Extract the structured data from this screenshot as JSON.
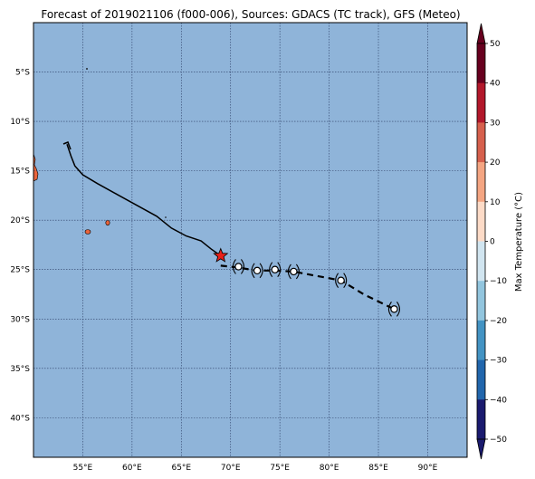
{
  "title": "Forecast of 2019021106 (f000-006), Sources: GDACS (TC track), GFS (Meteo)",
  "map": {
    "ocean_color": "#8fb4d9",
    "land_color": "#e8643c",
    "lon_range": [
      50,
      94
    ],
    "lat_range": [
      -44,
      0
    ],
    "lon_ticks": [
      {
        "value": 55,
        "label": "55°E"
      },
      {
        "value": 60,
        "label": "60°E"
      },
      {
        "value": 65,
        "label": "65°E"
      },
      {
        "value": 70,
        "label": "70°E"
      },
      {
        "value": 75,
        "label": "75°E"
      },
      {
        "value": 80,
        "label": "80°E"
      },
      {
        "value": 85,
        "label": "85°E"
      },
      {
        "value": 90,
        "label": "90°E"
      }
    ],
    "lat_ticks": [
      {
        "value": -5,
        "label": "5°S"
      },
      {
        "value": -10,
        "label": "10°S"
      },
      {
        "value": -15,
        "label": "15°S"
      },
      {
        "value": -20,
        "label": "20°S"
      },
      {
        "value": -25,
        "label": "25°S"
      },
      {
        "value": -30,
        "label": "30°S"
      },
      {
        "value": -35,
        "label": "35°S"
      },
      {
        "value": -40,
        "label": "40°S"
      }
    ],
    "past_track": [
      [
        53.4,
        -12.3
      ],
      [
        53.8,
        -13.5
      ],
      [
        54.2,
        -14.5
      ],
      [
        55.0,
        -15.4
      ],
      [
        56.5,
        -16.3
      ],
      [
        58.5,
        -17.4
      ],
      [
        60.5,
        -18.5
      ],
      [
        62.5,
        -19.6
      ],
      [
        64.0,
        -20.8
      ],
      [
        65.5,
        -21.6
      ],
      [
        67.0,
        -22.1
      ],
      [
        68.0,
        -22.9
      ],
      [
        69.0,
        -23.6
      ]
    ],
    "current_position": [
      69.0,
      -23.6
    ],
    "forecast_track": [
      [
        69.0,
        -24.6
      ],
      [
        70.8,
        -24.8
      ],
      [
        72.6,
        -25.1
      ],
      [
        74.4,
        -25.1
      ],
      [
        76.4,
        -25.2
      ],
      [
        78.5,
        -25.6
      ],
      [
        81.2,
        -26.1
      ],
      [
        83.5,
        -27.5
      ],
      [
        86.6,
        -29.0
      ]
    ],
    "forecast_points": [
      [
        70.8,
        -24.7
      ],
      [
        72.7,
        -25.1
      ],
      [
        74.5,
        -25.0
      ],
      [
        76.4,
        -25.2
      ],
      [
        81.2,
        -26.1
      ],
      [
        86.6,
        -29.0
      ]
    ]
  },
  "colorbar": {
    "label": "Max Temperature (°C)",
    "ticks": [
      "50",
      "40",
      "30",
      "20",
      "10",
      "0",
      "−10",
      "−20",
      "−30",
      "−40",
      "−50"
    ],
    "colors": [
      "#67001f",
      "#b2182b",
      "#d6604d",
      "#f4a582",
      "#fddbc7",
      "#ffffff",
      "#d1e5f0",
      "#92c5de",
      "#4393c3",
      "#2166ac",
      "#1a1a6e"
    ]
  }
}
